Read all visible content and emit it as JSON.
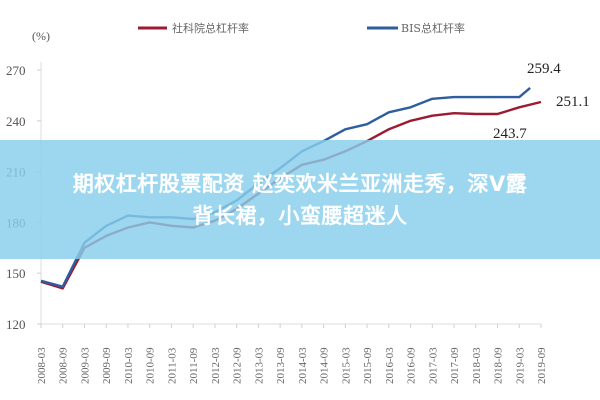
{
  "chart_data": {
    "type": "line",
    "title": "",
    "ylabel": "(%)",
    "xlabel": "",
    "ylim": [
      120,
      270
    ],
    "yticks": [
      120,
      150,
      180,
      210,
      240,
      270
    ],
    "grid": false,
    "legend_position": "top",
    "x": [
      "2008-03",
      "2008-09",
      "2009-03",
      "2009-09",
      "2010-03",
      "2010-09",
      "2011-03",
      "2011-09",
      "2012-03",
      "2012-09",
      "2013-03",
      "2013-09",
      "2014-03",
      "2014-09",
      "2015-03",
      "2015-09",
      "2016-03",
      "2016-09",
      "2017-03",
      "2017-09",
      "2018-03",
      "2018-09",
      "2019-03",
      "2019-09"
    ],
    "series": [
      {
        "name": "社科院总杠杆率",
        "color": "#9b1b30",
        "values": [
          145,
          141,
          165,
          172,
          177,
          180,
          178,
          177,
          181,
          188,
          197,
          206,
          214,
          217,
          222,
          228,
          235,
          240,
          243,
          244.5,
          244,
          244,
          248,
          251.1
        ]
      },
      {
        "name": "BIS总杠杆率",
        "color": "#2e5e9e",
        "values": [
          145.5,
          142,
          168,
          178,
          184,
          183,
          183,
          182,
          186,
          193,
          203,
          212,
          222,
          228,
          235,
          238,
          245,
          248,
          253,
          254,
          254,
          254,
          254,
          259.4
        ]
      }
    ],
    "annotations": [
      {
        "text": "259.4",
        "series": "BIS总杠杆率",
        "x": "2019-06"
      },
      {
        "text": "251.1",
        "series": "社科院总杠杆率",
        "x": "2019-09"
      },
      {
        "text": "243.7",
        "series": "社科院总杠杆率",
        "x": "2018-09"
      }
    ]
  },
  "legend": {
    "items": [
      {
        "label": "社科院总杠杆率",
        "color": "#9b1b30"
      },
      {
        "label": "BIS总杠杆率",
        "color": "#2e5e9e"
      }
    ]
  },
  "overlay": {
    "line1": "期权杠杆股票配资 赵奕欢米兰亚洲走秀，深V露",
    "line2": "背长裙，小蛮腰超迷人",
    "background": "#87ceeb"
  }
}
